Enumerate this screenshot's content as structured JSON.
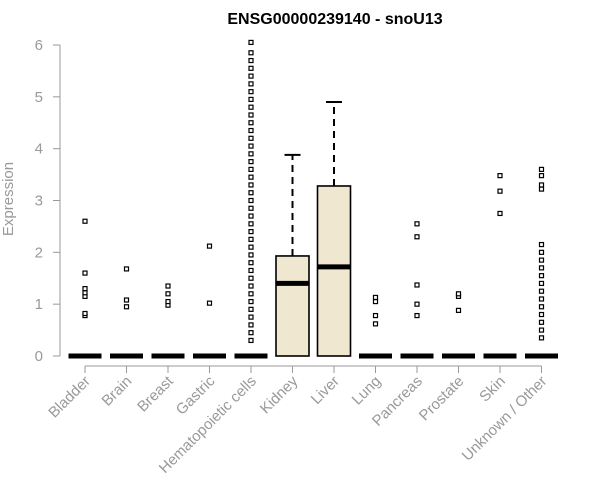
{
  "chart_data": {
    "type": "box",
    "title": "ENSG00000239140 - snoU13",
    "xlabel": "",
    "ylabel": "Expression",
    "ylim": [
      0,
      6.2
    ],
    "yticks": [
      "0",
      "1",
      "2",
      "3",
      "4",
      "5",
      "6"
    ],
    "grid": false,
    "box_fill": "#efe7cf",
    "box_stroke": "#000000",
    "categories": [
      "Bladder",
      "Brain",
      "Breast",
      "Gastric",
      "Hematopoietic cells",
      "Kidney",
      "Liver",
      "Lung",
      "Pancreas",
      "Prostate",
      "Skin",
      "Unknown / Other"
    ],
    "boxes": [
      {
        "category": "Bladder",
        "min": 0,
        "q1": 0,
        "median": 0,
        "q3": 0,
        "max": 0,
        "outliers": [
          0.78,
          0.82,
          1.15,
          1.22,
          1.3,
          1.6,
          2.6
        ]
      },
      {
        "category": "Brain",
        "min": 0,
        "q1": 0,
        "median": 0,
        "q3": 0,
        "max": 0,
        "outliers": [
          0.95,
          1.08,
          1.68
        ]
      },
      {
        "category": "Breast",
        "min": 0,
        "q1": 0,
        "median": 0,
        "q3": 0,
        "max": 0,
        "outliers": [
          0.98,
          1.05,
          1.2,
          1.35
        ]
      },
      {
        "category": "Gastric",
        "min": 0,
        "q1": 0,
        "median": 0,
        "q3": 0,
        "max": 0,
        "outliers": [
          1.02,
          2.12
        ]
      },
      {
        "category": "Hematopoietic cells",
        "min": 0,
        "q1": 0,
        "median": 0,
        "q3": 0,
        "max": 0,
        "outliers": [
          0.3,
          0.45,
          0.6,
          0.75,
          0.9,
          1.05,
          1.2,
          1.35,
          1.5,
          1.65,
          1.8,
          1.95,
          2.1,
          2.25,
          2.4,
          2.55,
          2.7,
          2.85,
          3.0,
          3.15,
          3.3,
          3.45,
          3.6,
          3.75,
          3.9,
          4.05,
          4.2,
          4.35,
          4.5,
          4.65,
          4.8,
          4.95,
          5.1,
          5.25,
          5.4,
          5.55,
          5.7,
          5.85,
          6.05
        ]
      },
      {
        "category": "Kidney",
        "min": 0,
        "q1": 0,
        "median": 1.4,
        "q3": 1.93,
        "max": 3.88,
        "outliers": []
      },
      {
        "category": "Liver",
        "min": 0,
        "q1": 0,
        "median": 1.72,
        "q3": 3.28,
        "max": 4.9,
        "outliers": []
      },
      {
        "category": "Lung",
        "min": 0,
        "q1": 0,
        "median": 0,
        "q3": 0,
        "max": 0,
        "outliers": [
          0.62,
          0.78,
          1.05,
          1.13
        ]
      },
      {
        "category": "Pancreas",
        "min": 0,
        "q1": 0,
        "median": 0,
        "q3": 0,
        "max": 0,
        "outliers": [
          0.78,
          1.0,
          1.37,
          2.3,
          2.55
        ]
      },
      {
        "category": "Prostate",
        "min": 0,
        "q1": 0,
        "median": 0,
        "q3": 0,
        "max": 0,
        "outliers": [
          0.88,
          1.15,
          1.2
        ]
      },
      {
        "category": "Skin",
        "min": 0,
        "q1": 0,
        "median": 0,
        "q3": 0,
        "max": 0,
        "outliers": [
          2.75,
          3.18,
          3.48
        ]
      },
      {
        "category": "Unknown / Other",
        "min": 0,
        "q1": 0,
        "median": 0,
        "q3": 0,
        "max": 0,
        "outliers": [
          0.35,
          0.5,
          0.65,
          0.8,
          0.95,
          1.1,
          1.25,
          1.4,
          1.55,
          1.7,
          1.85,
          2.0,
          2.15,
          3.22,
          3.3,
          3.48,
          3.6
        ]
      }
    ]
  }
}
